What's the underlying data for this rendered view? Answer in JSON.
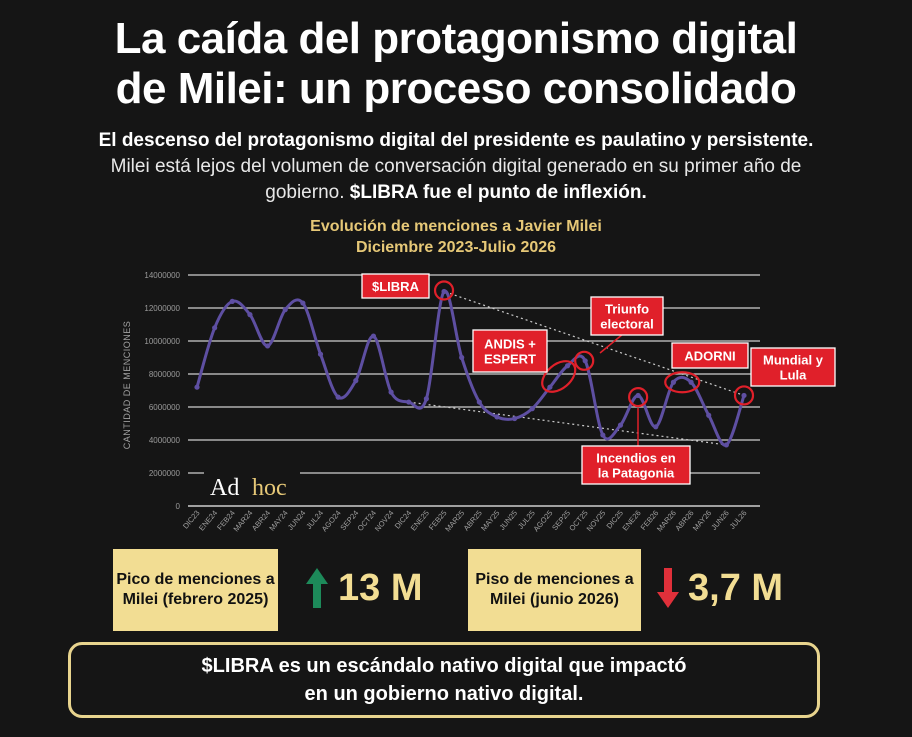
{
  "header": {
    "title_line1": "La caída del protagonismo digital",
    "title_line2": "de Milei: un proceso consolidado",
    "subtitle_bold1": "El descenso del protagonismo digital del presidente es paulatino y persistente.",
    "subtitle_text": " Milei está lejos del volumen de conversación digital generado en su primer año de gobierno. ",
    "subtitle_bold2": "$LIBRA fue el punto de inflexión."
  },
  "chart_data": {
    "type": "line",
    "title_line1": "Evolución de menciones a Javier Milei",
    "title_line2": "Diciembre 2023-Julio 2026",
    "ylabel": "CANTIDAD DE MENCIONES",
    "xlabel": "",
    "ylim": [
      0,
      14000000
    ],
    "yticks": [
      "0",
      "2000000",
      "4000000",
      "6000000",
      "8000000",
      "10000000",
      "12000000",
      "14000000"
    ],
    "grid": true,
    "categories": [
      "DIC23",
      "ENE24",
      "FEB24",
      "MAR24",
      "ABR24",
      "MAY24",
      "JUN24",
      "JUL24",
      "AGO24",
      "SEP24",
      "OCT24",
      "NOV24",
      "DIC24",
      "ENE25",
      "FEB25",
      "MAR25",
      "ABR25",
      "MAY25",
      "JUN25",
      "JUL25",
      "AGO25",
      "SEP25",
      "OCT25",
      "NOV25",
      "DIC25",
      "ENE26",
      "FEB26",
      "MAR26",
      "ABR26",
      "MAY26",
      "JUN26",
      "JUL26"
    ],
    "series": [
      {
        "values": [
          7200000,
          10800000,
          12400000,
          11600000,
          9700000,
          11900000,
          12300000,
          9200000,
          6600000,
          7600000,
          10300000,
          6900000,
          6300000,
          6500000,
          13000000,
          9000000,
          6300000,
          5400000,
          5300000,
          5900000,
          7200000,
          8500000,
          8800000,
          4300000,
          4900000,
          6700000,
          4800000,
          7500000,
          7500000,
          5500000,
          3700000,
          6700000
        ],
        "color": "#5e4fa2"
      }
    ],
    "annotations": [
      {
        "label": "$LIBRA",
        "category": "FEB25"
      },
      {
        "label": "ANDIS + ESPERT",
        "category": "AGO25"
      },
      {
        "label": "Triunfo electoral",
        "category": "OCT25"
      },
      {
        "label": "ADORNI",
        "category": "MAR26"
      },
      {
        "label": "Mundial y Lula",
        "category": "JUL26"
      },
      {
        "label": "Incendios en la Patagonia",
        "category": "ENE26"
      }
    ],
    "watermark": "Ad hoc"
  },
  "stats": {
    "peak_label": "Pico de menciones a Milei (febrero 2025)",
    "peak_value": "13 M",
    "floor_label": "Piso de menciones a Milei (junio 2026)",
    "floor_value": "3,7 M"
  },
  "conclusion": {
    "line1": "$LIBRA es un escándalo nativo digital que impactó",
    "line2": "en un gobierno nativo digital."
  },
  "colors": {
    "background": "#151515",
    "accent_gold": "#f2dd93",
    "chart_title": "#e6c877",
    "line": "#5e4fa2",
    "annotation_red": "#e0202a",
    "up_arrow": "#1d8a5a",
    "down_arrow": "#e0303a"
  }
}
